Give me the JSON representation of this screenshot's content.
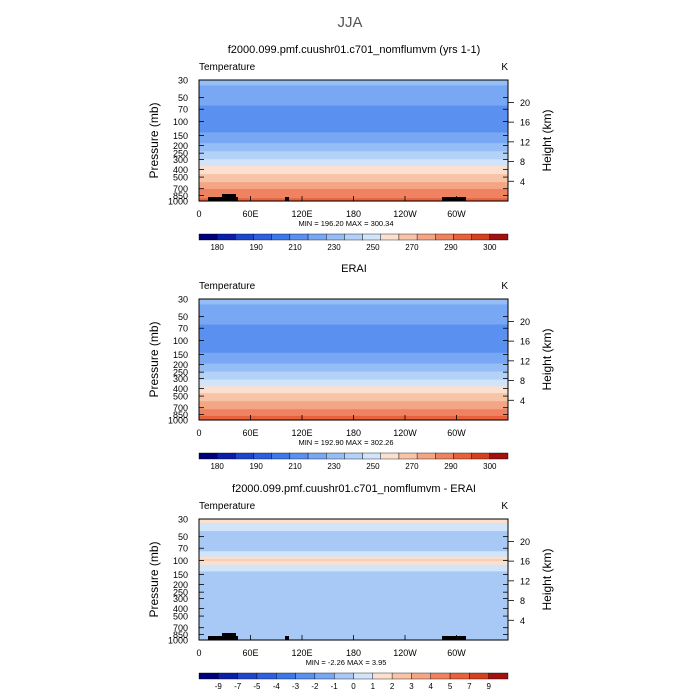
{
  "page_title": "JJA",
  "chart_data": [
    {
      "type": "heatmap",
      "title": "f2000.099.pmf.cuushr01.c701_nomflumvm (yrs 1-1)",
      "left_label": "Temperature",
      "right_label": "K",
      "ylabel": "Pressure (mb)",
      "y2label": "Height (km)",
      "x_ticks": [
        "0",
        "60E",
        "120E",
        "180",
        "120W",
        "60W"
      ],
      "y_ticks": [
        30,
        50,
        70,
        100,
        150,
        200,
        250,
        300,
        400,
        500,
        700,
        850,
        1000
      ],
      "y2_ticks": [
        20,
        16,
        12,
        8,
        4
      ],
      "ylim": [
        30,
        1000
      ],
      "stats": "MIN = 196.20 MAX = 300.34",
      "min": 196.2,
      "max": 300.34,
      "colorbar_labels": [
        "180",
        "190",
        "210",
        "230",
        "250",
        "270",
        "290",
        "300"
      ],
      "levels": [
        175,
        180,
        185,
        190,
        200,
        210,
        220,
        230,
        240,
        250,
        260,
        270,
        280,
        290,
        295,
        300
      ],
      "colors": [
        "#00007a",
        "#0a1eaa",
        "#1e46cd",
        "#2d5fe1",
        "#3c78eb",
        "#5a90f0",
        "#78a8f4",
        "#96bef6",
        "#b4d2f8",
        "#d2e4fa",
        "#fbe0cf",
        "#f8c4a8",
        "#f4a584",
        "#ef8260",
        "#e8603c",
        "#d5401e",
        "#a31010"
      ],
      "profile": [
        {
          "p": 30,
          "v": 222
        },
        {
          "p": 50,
          "v": 215
        },
        {
          "p": 70,
          "v": 208
        },
        {
          "p": 100,
          "v": 203
        },
        {
          "p": 150,
          "v": 212
        },
        {
          "p": 200,
          "v": 222
        },
        {
          "p": 250,
          "v": 232
        },
        {
          "p": 300,
          "v": 240
        },
        {
          "p": 400,
          "v": 254
        },
        {
          "p": 500,
          "v": 264
        },
        {
          "p": 700,
          "v": 279
        },
        {
          "p": 850,
          "v": 287
        },
        {
          "p": 1000,
          "v": 294
        }
      ],
      "terrain": true
    },
    {
      "type": "heatmap",
      "title": "ERAI",
      "left_label": "Temperature",
      "right_label": "K",
      "ylabel": "Pressure (mb)",
      "y2label": "Height (km)",
      "x_ticks": [
        "0",
        "60E",
        "120E",
        "180",
        "120W",
        "60W"
      ],
      "y_ticks": [
        30,
        50,
        70,
        100,
        150,
        200,
        250,
        300,
        400,
        500,
        700,
        850,
        1000
      ],
      "y2_ticks": [
        20,
        16,
        12,
        8,
        4
      ],
      "ylim": [
        30,
        1000
      ],
      "stats": "MIN = 192.90 MAX = 302.26",
      "min": 192.9,
      "max": 302.26,
      "colorbar_labels": [
        "180",
        "190",
        "210",
        "230",
        "250",
        "270",
        "290",
        "300"
      ],
      "levels": [
        175,
        180,
        185,
        190,
        200,
        210,
        220,
        230,
        240,
        250,
        260,
        270,
        280,
        290,
        295,
        300
      ],
      "colors": [
        "#00007a",
        "#0a1eaa",
        "#1e46cd",
        "#2d5fe1",
        "#3c78eb",
        "#5a90f0",
        "#78a8f4",
        "#96bef6",
        "#b4d2f8",
        "#d2e4fa",
        "#fbe0cf",
        "#f8c4a8",
        "#f4a584",
        "#ef8260",
        "#e8603c",
        "#d5401e",
        "#a31010"
      ],
      "profile": [
        {
          "p": 30,
          "v": 222
        },
        {
          "p": 50,
          "v": 215
        },
        {
          "p": 70,
          "v": 208
        },
        {
          "p": 100,
          "v": 202
        },
        {
          "p": 150,
          "v": 211
        },
        {
          "p": 200,
          "v": 221
        },
        {
          "p": 250,
          "v": 231
        },
        {
          "p": 300,
          "v": 239
        },
        {
          "p": 400,
          "v": 253
        },
        {
          "p": 500,
          "v": 263
        },
        {
          "p": 700,
          "v": 278
        },
        {
          "p": 850,
          "v": 287
        },
        {
          "p": 1000,
          "v": 296
        }
      ],
      "terrain": false
    },
    {
      "type": "heatmap",
      "title": "f2000.099.pmf.cuushr01.c701_nomflumvm - ERAI",
      "left_label": "Temperature",
      "right_label": "K",
      "ylabel": "Pressure (mb)",
      "y2label": "Height (km)",
      "x_ticks": [
        "0",
        "60E",
        "120E",
        "180",
        "120W",
        "60W"
      ],
      "y_ticks": [
        30,
        50,
        70,
        100,
        150,
        200,
        250,
        300,
        400,
        500,
        700,
        850,
        1000
      ],
      "y2_ticks": [
        20,
        16,
        12,
        8,
        4
      ],
      "ylim": [
        30,
        1000
      ],
      "stats": "MIN = -2.26 MAX = 3.95",
      "min": -2.26,
      "max": 3.95,
      "colorbar_labels": [
        "-9",
        "-7",
        "-5",
        "-4",
        "-3",
        "-2",
        "-1",
        "0",
        "1",
        "2",
        "3",
        "4",
        "5",
        "7",
        "9"
      ],
      "levels": [
        -9,
        -7,
        -5,
        -4,
        -3,
        -2,
        -1,
        0,
        1,
        2,
        3,
        4,
        5,
        7,
        9
      ],
      "colors": [
        "#00007a",
        "#0a1eaa",
        "#1e46cd",
        "#2d5fe1",
        "#3c78eb",
        "#5a90f0",
        "#78a8f4",
        "#a8c8f6",
        "#d2e4fa",
        "#fbe0cf",
        "#f8c4a8",
        "#f4a584",
        "#ef8260",
        "#e8603c",
        "#d5401e",
        "#a31010"
      ],
      "profile": [
        {
          "p": 30,
          "v": 1.5
        },
        {
          "p": 50,
          "v": -0.6
        },
        {
          "p": 70,
          "v": -0.4
        },
        {
          "p": 85,
          "v": 0.5
        },
        {
          "p": 100,
          "v": 2.2
        },
        {
          "p": 120,
          "v": 0.6
        },
        {
          "p": 150,
          "v": -0.4
        },
        {
          "p": 200,
          "v": -0.5
        },
        {
          "p": 300,
          "v": -0.5
        },
        {
          "p": 400,
          "v": -0.4
        },
        {
          "p": 500,
          "v": -0.6
        },
        {
          "p": 700,
          "v": -0.5
        },
        {
          "p": 850,
          "v": -0.6
        },
        {
          "p": 1000,
          "v": -0.5
        }
      ],
      "terrain": true
    }
  ]
}
